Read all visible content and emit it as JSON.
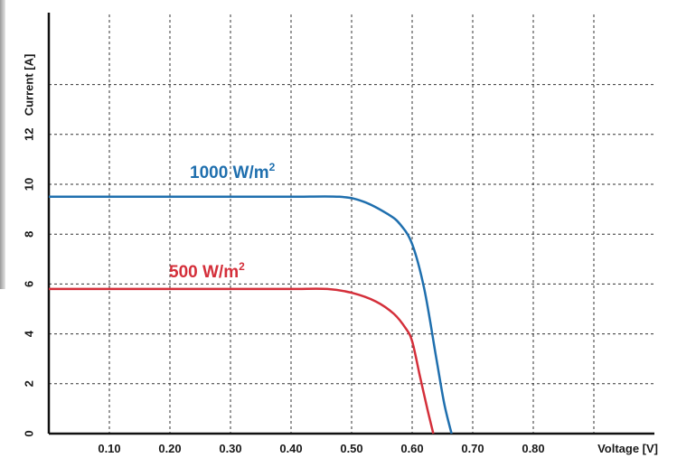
{
  "chart_data": {
    "type": "line",
    "xlabel": "Voltage [V]",
    "ylabel": "Current [A]",
    "xlim": [
      0,
      0.9
    ],
    "ylim": [
      0,
      16.5
    ],
    "x_ticks": [
      "0.10",
      "0.20",
      "0.30",
      "0.40",
      "0.50",
      "0.60",
      "0.70",
      "0.80"
    ],
    "y_ticks": [
      "0",
      "2",
      "4",
      "6",
      "8",
      "10",
      "12"
    ],
    "grid": true,
    "series": [
      {
        "name": "1000 W/m",
        "superscript": "2",
        "color": "#1f6fae",
        "x": [
          0.0,
          0.1,
          0.2,
          0.3,
          0.4,
          0.48,
          0.52,
          0.56,
          0.58,
          0.6,
          0.62,
          0.64,
          0.653,
          0.665
        ],
        "y": [
          9.5,
          9.5,
          9.5,
          9.5,
          9.5,
          9.5,
          9.3,
          8.8,
          8.4,
          7.6,
          5.8,
          3.0,
          1.2,
          0.0
        ]
      },
      {
        "name": "500 W/m",
        "superscript": "2",
        "color": "#d42f3a",
        "x": [
          0.0,
          0.1,
          0.2,
          0.3,
          0.4,
          0.46,
          0.5,
          0.54,
          0.57,
          0.59,
          0.6,
          0.612,
          0.624,
          0.635
        ],
        "y": [
          5.8,
          5.8,
          5.8,
          5.8,
          5.8,
          5.8,
          5.65,
          5.3,
          4.8,
          4.2,
          3.7,
          2.4,
          1.1,
          0.0
        ]
      }
    ]
  }
}
